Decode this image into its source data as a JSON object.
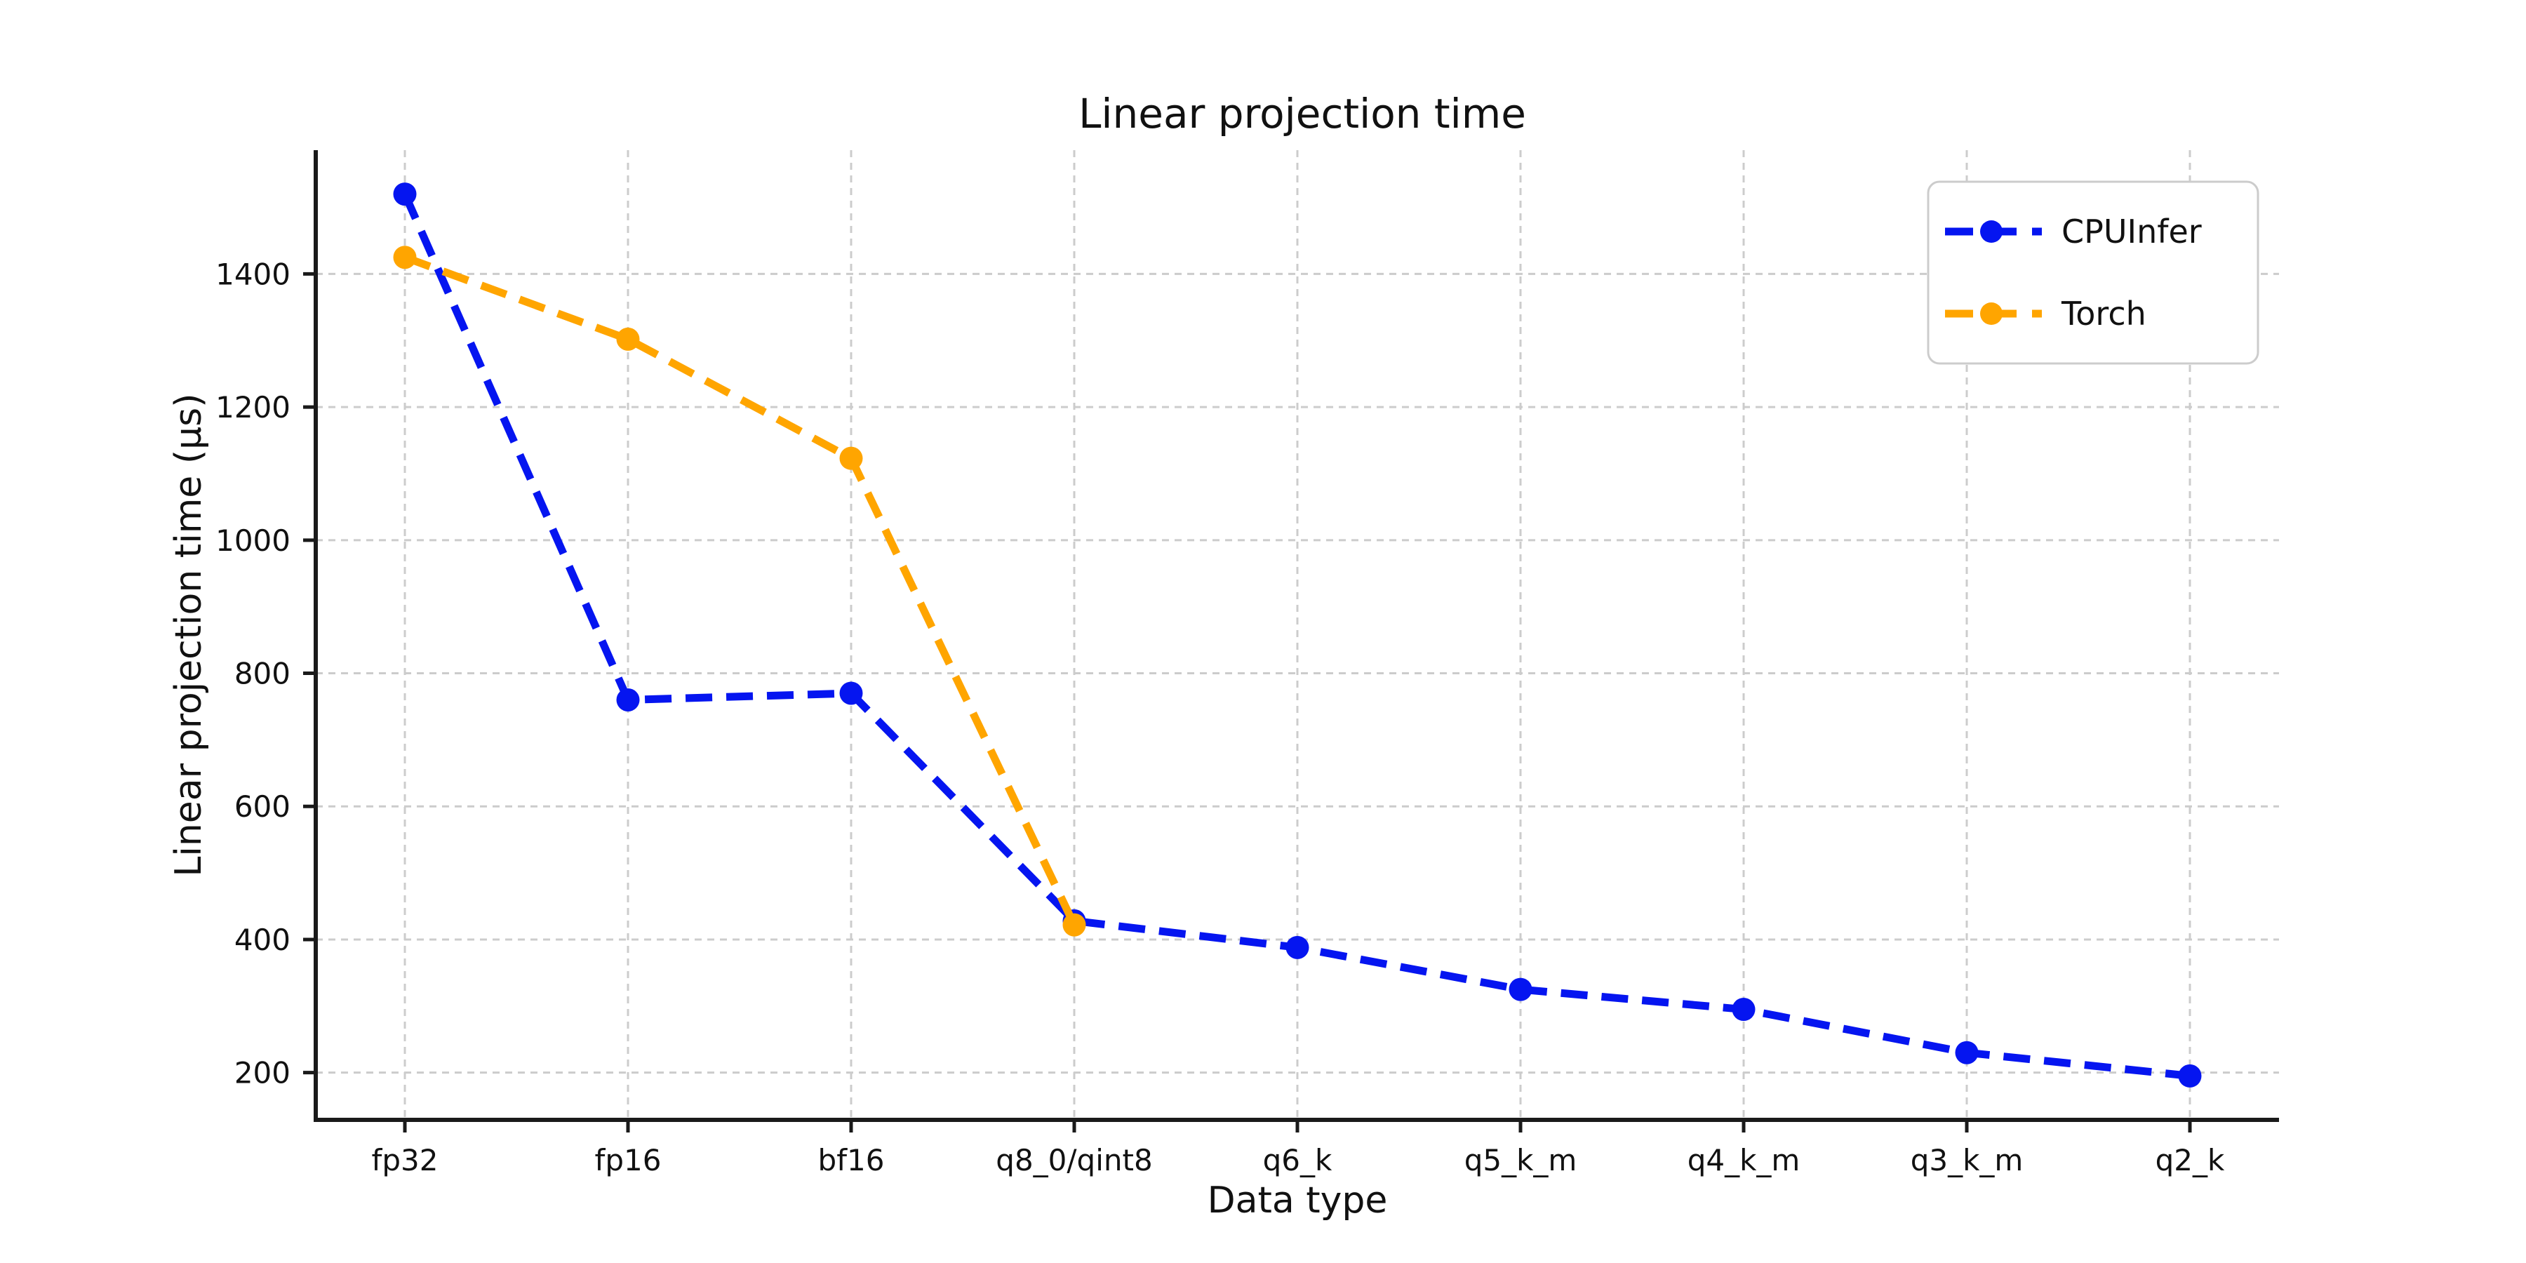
{
  "title": "Linear projection time",
  "axes": {
    "x_label": "Data type",
    "y_label": "Linear projection time (μs)"
  },
  "legend": {
    "items": [
      "CPUInfer",
      "Torch"
    ]
  },
  "colors": {
    "cpuinfer": "#0515f0",
    "torch": "#ffa500",
    "grid": "#cccccc",
    "spine": "#1a1a1a",
    "text": "#111111",
    "background": "#ffffff",
    "legend_border": "#cccccc"
  },
  "chart_data": {
    "type": "line",
    "title": "Linear projection time",
    "xlabel": "Data type",
    "ylabel": "Linear projection time (μs)",
    "categories": [
      "fp32",
      "fp16",
      "bf16",
      "q8_0/qint8",
      "q6_k",
      "q5_k_m",
      "q4_k_m",
      "q3_k_m",
      "q2_k"
    ],
    "series": [
      {
        "name": "CPUInfer",
        "color": "#0515f0",
        "values": [
          1520,
          760,
          770,
          428,
          388,
          325,
          295,
          230,
          195
        ]
      },
      {
        "name": "Torch",
        "color": "#ffa500",
        "values": [
          1425,
          1302,
          1123,
          422,
          null,
          null,
          null,
          null,
          null
        ]
      }
    ],
    "yticks": [
      200,
      400,
      600,
      800,
      1000,
      1200,
      1400
    ],
    "ylim": [
      129,
      1586
    ],
    "grid": true,
    "grid_style": "dashed",
    "line_style": "dashed",
    "marker": "circle",
    "legend_position": "upper right"
  }
}
